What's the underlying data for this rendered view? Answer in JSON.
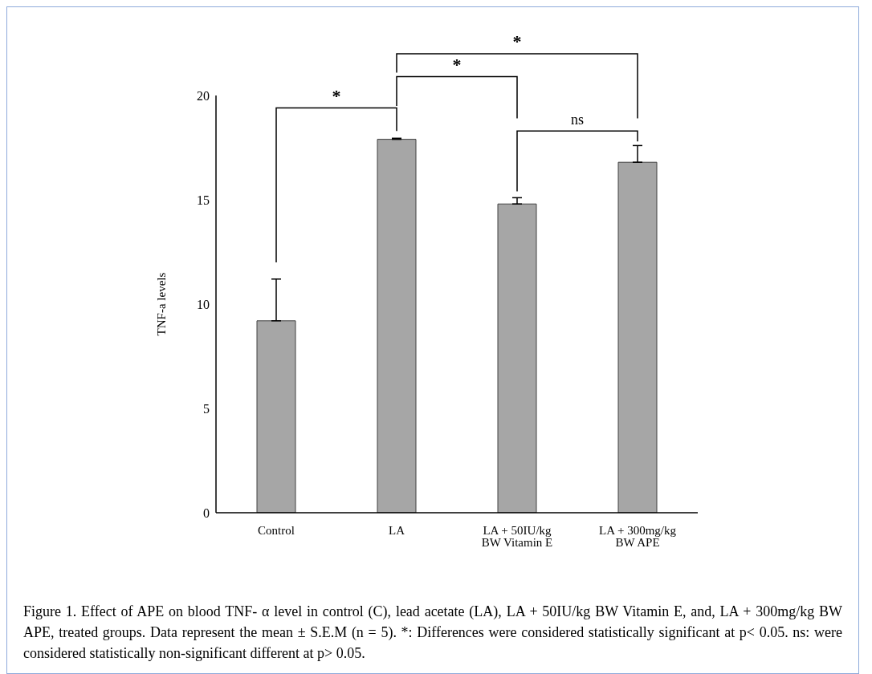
{
  "chart_data": {
    "type": "bar",
    "categories": [
      "Control",
      "LA",
      "LA + 50IU/kg BW Vitamin E",
      "LA + 300mg/kg BW APE"
    ],
    "values": [
      9.2,
      17.9,
      14.8,
      16.8
    ],
    "color": "#a6a6a6",
    "errors": [
      [
        9.2,
        11.2
      ],
      [
        17.9,
        17.95
      ],
      [
        14.8,
        15.1
      ],
      [
        16.8,
        17.6
      ]
    ],
    "ylabel": "TNF-a levels",
    "ylim": [
      0,
      20
    ],
    "yticks": [
      0,
      5,
      10,
      15,
      20
    ],
    "grid": false,
    "annotations": [
      "*",
      "*",
      "*",
      "ns",
      "Figure 1. Effect of APE on blood TNF- α level in control (C), lead acetate (LA), LA + 50IU/kg BW Vitamin E, and, LA + 300mg/kg BW APE, treated groups. Data represent the mean ± S.E.M (n = 5). *: Differences were considered statistically significant at p< 0.05. ns: were considered statistically non-significant different at p> 0.05."
    ]
  }
}
